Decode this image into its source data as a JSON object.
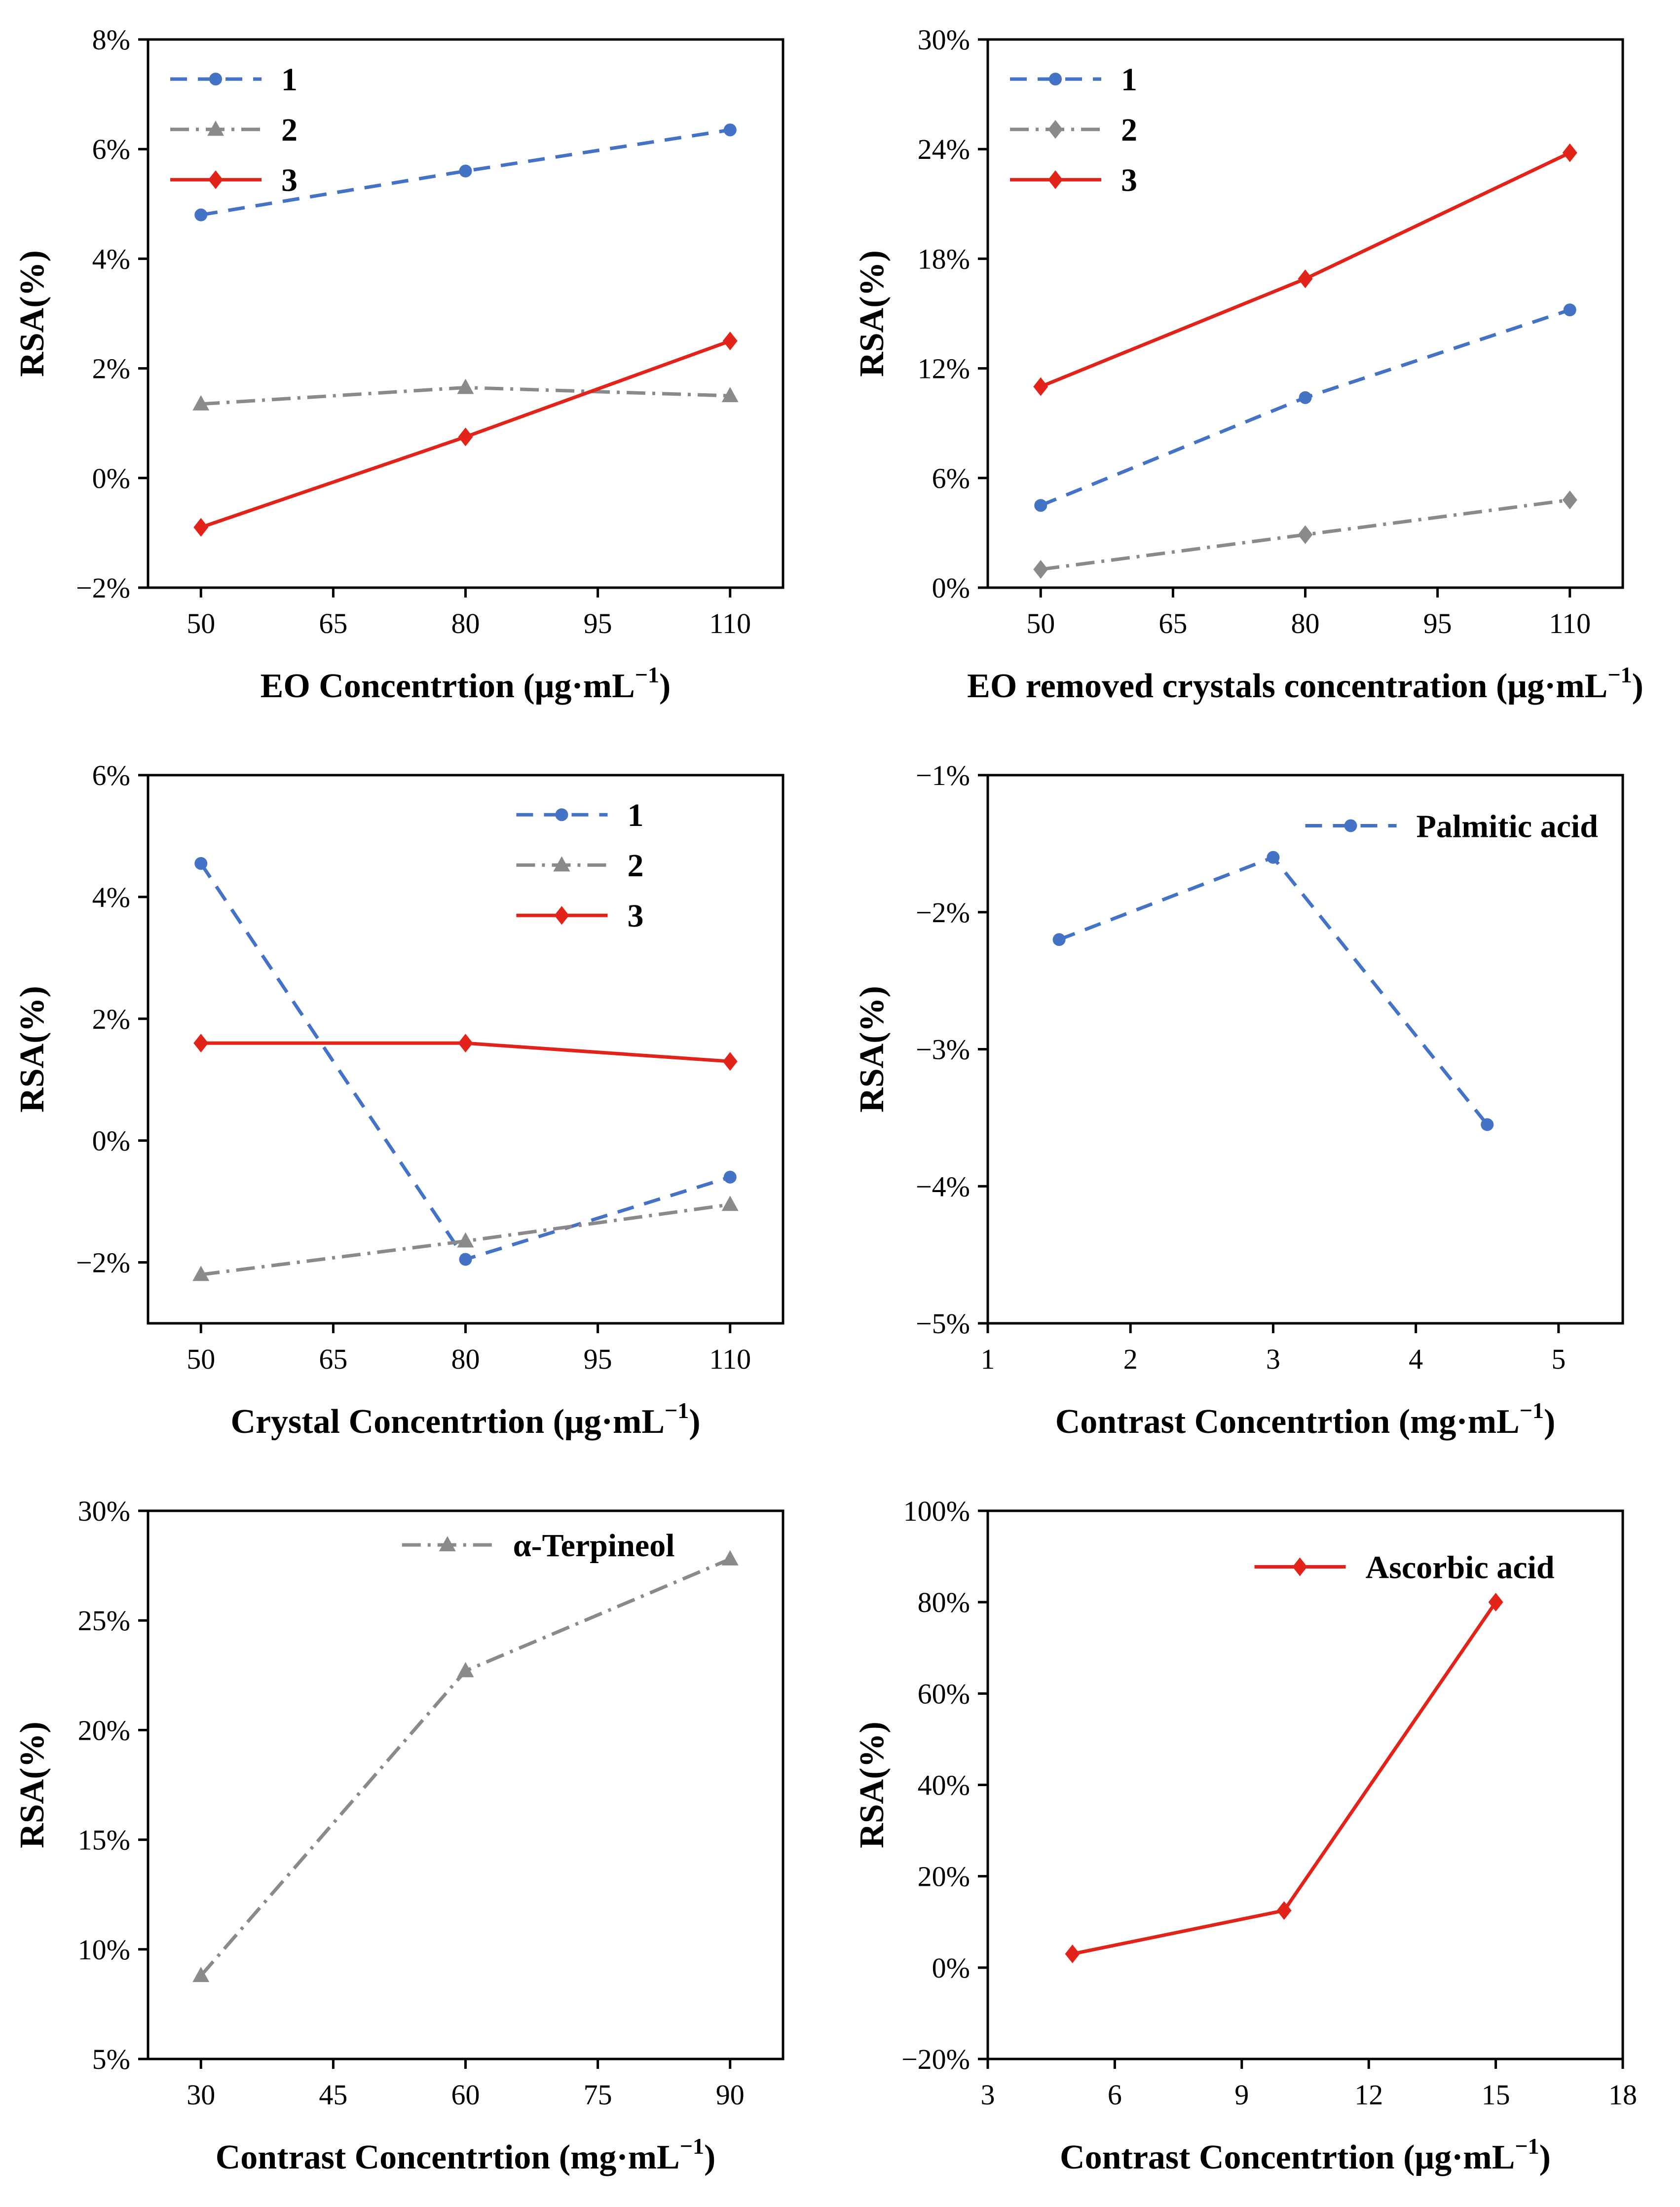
{
  "page": {
    "background": "#ffffff"
  },
  "chart_data": [
    {
      "id": "eo-concentration",
      "type": "line",
      "ylabel": "RSA(%)",
      "xlabel": {
        "pre": "EO Concentrtion (μg·mL",
        "sup": "−1",
        "post": ")"
      },
      "xlim": [
        44,
        116
      ],
      "ylim": [
        -2,
        8
      ],
      "xticks": [
        50,
        65,
        80,
        95,
        110
      ],
      "xtick_labels": [
        "50",
        "65",
        "80",
        "95",
        "110"
      ],
      "yticks": [
        -2,
        0,
        2,
        4,
        6,
        8
      ],
      "ytick_labels": [
        "−2%",
        "0%",
        "2%",
        "4%",
        "6%",
        "8%"
      ],
      "legend": {
        "x": 0.035,
        "y": 0.02
      },
      "series": [
        {
          "name": "1",
          "color": "#4472c4",
          "line": "dashed",
          "marker": "circle",
          "x": [
            50,
            80,
            110
          ],
          "y": [
            4.8,
            5.6,
            6.35
          ]
        },
        {
          "name": "2",
          "color": "#8a8a8a",
          "line": "dashdot",
          "marker": "triangle",
          "x": [
            50,
            80,
            110
          ],
          "y": [
            1.35,
            1.65,
            1.5
          ]
        },
        {
          "name": "3",
          "color": "#e2231a",
          "line": "solid",
          "marker": "diamond",
          "x": [
            50,
            80,
            110
          ],
          "y": [
            -0.9,
            0.75,
            2.5
          ]
        }
      ]
    },
    {
      "id": "eo-removed-crystals",
      "type": "line",
      "ylabel": "RSA(%)",
      "xlabel": {
        "pre": "EO removed crystals concentration (μg·mL",
        "sup": "−1",
        "post": ")"
      },
      "xlim": [
        44,
        116
      ],
      "ylim": [
        0,
        30
      ],
      "xticks": [
        50,
        65,
        80,
        95,
        110
      ],
      "xtick_labels": [
        "50",
        "65",
        "80",
        "95",
        "110"
      ],
      "yticks": [
        0,
        6,
        12,
        18,
        24,
        30
      ],
      "ytick_labels": [
        "0%",
        "6%",
        "12%",
        "18%",
        "24%",
        "30%"
      ],
      "legend": {
        "x": 0.035,
        "y": 0.02
      },
      "series": [
        {
          "name": "1",
          "color": "#4472c4",
          "line": "dashed",
          "marker": "circle",
          "x": [
            50,
            80,
            110
          ],
          "y": [
            4.5,
            10.4,
            15.2
          ]
        },
        {
          "name": "2",
          "color": "#8a8a8a",
          "line": "dashdot",
          "marker": "diamond",
          "x": [
            50,
            80,
            110
          ],
          "y": [
            1.0,
            2.9,
            4.8
          ]
        },
        {
          "name": "3",
          "color": "#e2231a",
          "line": "solid",
          "marker": "diamond",
          "x": [
            50,
            80,
            110
          ],
          "y": [
            11.0,
            16.9,
            23.8
          ]
        }
      ]
    },
    {
      "id": "crystal-concentration",
      "type": "line",
      "ylabel": "RSA(%)",
      "xlabel": {
        "pre": "Crystal Concentrtion (μg·mL",
        "sup": "−1",
        "post": ")"
      },
      "xlim": [
        44,
        116
      ],
      "ylim": [
        -3,
        6
      ],
      "xticks": [
        50,
        65,
        80,
        95,
        110
      ],
      "xtick_labels": [
        "50",
        "65",
        "80",
        "95",
        "110"
      ],
      "yticks": [
        -2,
        0,
        2,
        4,
        6
      ],
      "ytick_labels": [
        "−2%",
        "0%",
        "2%",
        "4%",
        "6%"
      ],
      "legend": {
        "x": 0.58,
        "y": 0.02
      },
      "series": [
        {
          "name": "1",
          "color": "#4472c4",
          "line": "dashed",
          "marker": "circle",
          "x": [
            50,
            80,
            110
          ],
          "y": [
            4.55,
            -1.95,
            -0.6
          ]
        },
        {
          "name": "2",
          "color": "#8a8a8a",
          "line": "dashdot",
          "marker": "triangle",
          "x": [
            50,
            80,
            110
          ],
          "y": [
            -2.2,
            -1.65,
            -1.05
          ]
        },
        {
          "name": "3",
          "color": "#e2231a",
          "line": "solid",
          "marker": "diamond",
          "x": [
            50,
            80,
            110
          ],
          "y": [
            1.6,
            1.6,
            1.3
          ]
        }
      ]
    },
    {
      "id": "palmitic-acid",
      "type": "line",
      "ylabel": "RSA(%)",
      "xlabel": {
        "pre": "Contrast Concentrtion (mg·mL",
        "sup": "−1",
        "post": ")"
      },
      "xlim": [
        1,
        5.45
      ],
      "ylim": [
        -5,
        -1
      ],
      "xticks": [
        1,
        2,
        3,
        4,
        5
      ],
      "xtick_labels": [
        "1",
        "2",
        "3",
        "4",
        "5"
      ],
      "yticks": [
        -5,
        -4,
        -3,
        -2,
        -1
      ],
      "ytick_labels": [
        "−5%",
        "−4%",
        "−3%",
        "−2%",
        "−1%"
      ],
      "legend": {
        "x": 0.5,
        "y": 0.04
      },
      "series": [
        {
          "name": "Palmitic acid",
          "color": "#4472c4",
          "line": "dashed",
          "marker": "circle",
          "x": [
            1.5,
            3,
            4.5
          ],
          "y": [
            -2.2,
            -1.6,
            -3.55
          ]
        }
      ]
    },
    {
      "id": "alpha-terpineol",
      "type": "line",
      "ylabel": "RSA(%)",
      "xlabel": {
        "pre": "Contrast Concentrtion (mg·mL",
        "sup": "−1",
        "post": ")"
      },
      "xlim": [
        24,
        96
      ],
      "ylim": [
        5,
        30
      ],
      "xticks": [
        30,
        45,
        60,
        75,
        90
      ],
      "xtick_labels": [
        "30",
        "45",
        "60",
        "75",
        "90"
      ],
      "yticks": [
        5,
        10,
        15,
        20,
        25,
        30
      ],
      "ytick_labels": [
        "5%",
        "10%",
        "15%",
        "20%",
        "25%",
        "30%"
      ],
      "legend": {
        "x": 0.4,
        "y": 0.01
      },
      "series": [
        {
          "name": "α-Terpineol",
          "color": "#8a8a8a",
          "line": "dashdot",
          "marker": "triangle",
          "x": [
            30,
            60,
            90
          ],
          "y": [
            8.8,
            22.7,
            27.8
          ]
        }
      ]
    },
    {
      "id": "ascorbic-acid",
      "type": "line",
      "ylabel": "RSA(%)",
      "xlabel": {
        "pre": "Contrast Concentrtion (μg·mL",
        "sup": "−1",
        "post": ")"
      },
      "xlim": [
        3,
        18
      ],
      "ylim": [
        -20,
        100
      ],
      "xticks": [
        3,
        6,
        9,
        12,
        15,
        18
      ],
      "xtick_labels": [
        "3",
        "6",
        "9",
        "12",
        "15",
        "18"
      ],
      "yticks": [
        -20,
        0,
        20,
        40,
        60,
        80,
        100
      ],
      "ytick_labels": [
        "−20%",
        "0%",
        "20%",
        "40%",
        "60%",
        "80%",
        "100%"
      ],
      "legend": {
        "x": 0.42,
        "y": 0.05
      },
      "series": [
        {
          "name": "Ascorbic acid",
          "color": "#e2231a",
          "line": "solid",
          "marker": "diamond",
          "x": [
            5,
            10,
            15
          ],
          "y": [
            3.0,
            12.5,
            80.0
          ]
        }
      ]
    }
  ]
}
